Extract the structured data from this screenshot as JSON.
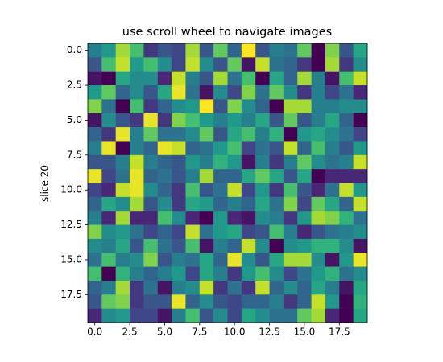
{
  "chart_data": {
    "type": "heatmap",
    "title": "use scroll wheel to navigate images",
    "y_label": "slice 20",
    "colormap": "viridis",
    "xlim": [
      -0.5,
      19.5
    ],
    "ylim": [
      19.5,
      -0.5
    ],
    "xticks": [
      {
        "value": 0,
        "label": "0.0"
      },
      2.5,
      {
        "value": 5,
        "label": "5.0"
      },
      7.5,
      {
        "value": 10,
        "label": "10.0"
      },
      12.5,
      {
        "value": 15,
        "label": "15.0"
      },
      17.5
    ],
    "yticks": [
      {
        "value": 0,
        "label": "0.0"
      },
      2.5,
      {
        "value": 5,
        "label": "5.0"
      },
      7.5,
      {
        "value": 10,
        "label": "10.0"
      },
      12.5,
      {
        "value": 15,
        "label": "15.0"
      },
      17.5
    ],
    "z": [
      [
        0.45,
        0.55,
        0.85,
        0.7,
        0.2,
        0.3,
        0.25,
        0.85,
        0.3,
        0.75,
        0.35,
        0.98,
        0.3,
        0.45,
        0.4,
        0.75,
        0.05,
        0.8,
        0.3,
        0.6
      ],
      [
        0.3,
        0.7,
        0.9,
        0.55,
        0.7,
        0.5,
        0.25,
        0.9,
        0.5,
        0.3,
        0.75,
        0.1,
        0.9,
        0.4,
        0.35,
        0.2,
        0.05,
        0.85,
        0.2,
        0.5
      ],
      [
        0.1,
        0.05,
        0.6,
        0.5,
        0.5,
        0.15,
        0.9,
        0.45,
        0.3,
        0.85,
        0.4,
        0.7,
        0.05,
        0.6,
        0.35,
        0.85,
        0.45,
        0.1,
        0.7,
        0.9
      ],
      [
        0.55,
        0.75,
        0.35,
        0.5,
        0.3,
        0.6,
        0.95,
        0.4,
        0.1,
        0.5,
        0.25,
        0.8,
        0.4,
        0.75,
        0.5,
        0.2,
        0.45,
        0.25,
        0.4,
        0.15
      ],
      [
        0.8,
        0.4,
        0.05,
        0.7,
        0.2,
        0.35,
        0.5,
        0.55,
        0.98,
        0.3,
        0.8,
        0.5,
        0.35,
        0.05,
        0.85,
        0.85,
        0.45,
        0.45,
        0.5,
        0.5
      ],
      [
        0.1,
        0.5,
        0.3,
        0.2,
        0.95,
        0.2,
        0.8,
        0.7,
        0.55,
        0.45,
        0.55,
        0.45,
        0.6,
        0.3,
        0.75,
        0.3,
        0.45,
        0.6,
        0.35,
        0.05
      ],
      [
        0.35,
        0.2,
        0.95,
        0.45,
        0.75,
        0.4,
        0.4,
        0.5,
        0.75,
        0.3,
        0.6,
        0.7,
        0.45,
        0.65,
        0.05,
        0.55,
        0.6,
        0.5,
        0.4,
        0.25
      ],
      [
        0.45,
        0.95,
        0.05,
        0.45,
        0.35,
        0.95,
        0.9,
        0.35,
        0.4,
        0.55,
        0.7,
        0.25,
        0.4,
        0.3,
        0.9,
        0.35,
        0.7,
        0.45,
        0.3,
        0.55
      ],
      [
        0.3,
        0.3,
        0.45,
        0.9,
        0.45,
        0.35,
        0.3,
        0.55,
        0.45,
        0.65,
        0.55,
        0.1,
        0.45,
        0.2,
        0.45,
        0.75,
        0.5,
        0.4,
        0.45,
        0.9
      ],
      [
        0.95,
        0.25,
        0.4,
        0.95,
        0.35,
        0.4,
        0.3,
        0.45,
        0.85,
        0.35,
        0.35,
        0.6,
        0.75,
        0.6,
        0.3,
        0.6,
        0.05,
        0.15,
        0.15,
        0.15
      ],
      [
        0.25,
        0.15,
        0.9,
        0.95,
        0.5,
        0.35,
        0.2,
        0.7,
        0.3,
        0.4,
        0.9,
        0.25,
        0.55,
        0.2,
        0.7,
        0.3,
        0.15,
        0.4,
        0.9,
        0.55
      ],
      [
        0.35,
        0.6,
        0.5,
        0.85,
        0.3,
        0.5,
        0.2,
        0.6,
        0.55,
        0.35,
        0.45,
        0.35,
        0.6,
        0.4,
        0.8,
        0.25,
        0.75,
        0.6,
        0.35,
        0.9
      ],
      [
        0.45,
        0.15,
        0.85,
        0.15,
        0.15,
        0.7,
        0.5,
        0.15,
        0.05,
        0.55,
        0.15,
        0.1,
        0.5,
        0.45,
        0.2,
        0.55,
        0.85,
        0.8,
        0.65,
        0.4
      ],
      [
        0.8,
        0.5,
        0.55,
        0.4,
        0.25,
        0.35,
        0.25,
        0.9,
        0.4,
        0.55,
        0.6,
        0.25,
        0.3,
        0.7,
        0.45,
        0.15,
        0.3,
        0.4,
        0.45,
        0.5
      ],
      [
        0.5,
        0.45,
        0.6,
        0.3,
        0.7,
        0.4,
        0.3,
        0.7,
        0.1,
        0.45,
        0.35,
        0.9,
        0.5,
        0.05,
        0.5,
        0.55,
        0.65,
        0.65,
        0.5,
        0.1
      ],
      [
        0.4,
        0.7,
        0.45,
        0.5,
        0.8,
        0.3,
        0.45,
        0.4,
        0.6,
        0.35,
        0.95,
        0.5,
        0.3,
        0.6,
        0.85,
        0.85,
        0.5,
        0.1,
        0.55,
        0.95
      ],
      [
        0.7,
        0.05,
        0.65,
        0.45,
        0.35,
        0.45,
        0.55,
        0.25,
        0.6,
        0.45,
        0.2,
        0.55,
        0.7,
        0.5,
        0.25,
        0.4,
        0.55,
        0.65,
        0.4,
        0.5
      ],
      [
        0.35,
        0.45,
        0.85,
        0.2,
        0.4,
        0.1,
        0.45,
        0.5,
        0.9,
        0.2,
        0.4,
        0.2,
        0.9,
        0.35,
        0.5,
        0.35,
        0.6,
        0.45,
        0.1,
        0.6
      ],
      [
        0.3,
        0.75,
        0.8,
        0.2,
        0.3,
        0.3,
        0.95,
        0.35,
        0.5,
        0.3,
        0.25,
        0.35,
        0.35,
        0.45,
        0.2,
        0.35,
        0.9,
        0.55,
        0.05,
        0.65
      ],
      [
        0.15,
        0.5,
        0.55,
        0.25,
        0.25,
        0.1,
        0.45,
        0.7,
        0.3,
        0.5,
        0.25,
        0.6,
        0.5,
        0.4,
        0.4,
        0.75,
        0.85,
        0.15,
        0.05,
        0.6
      ]
    ]
  }
}
